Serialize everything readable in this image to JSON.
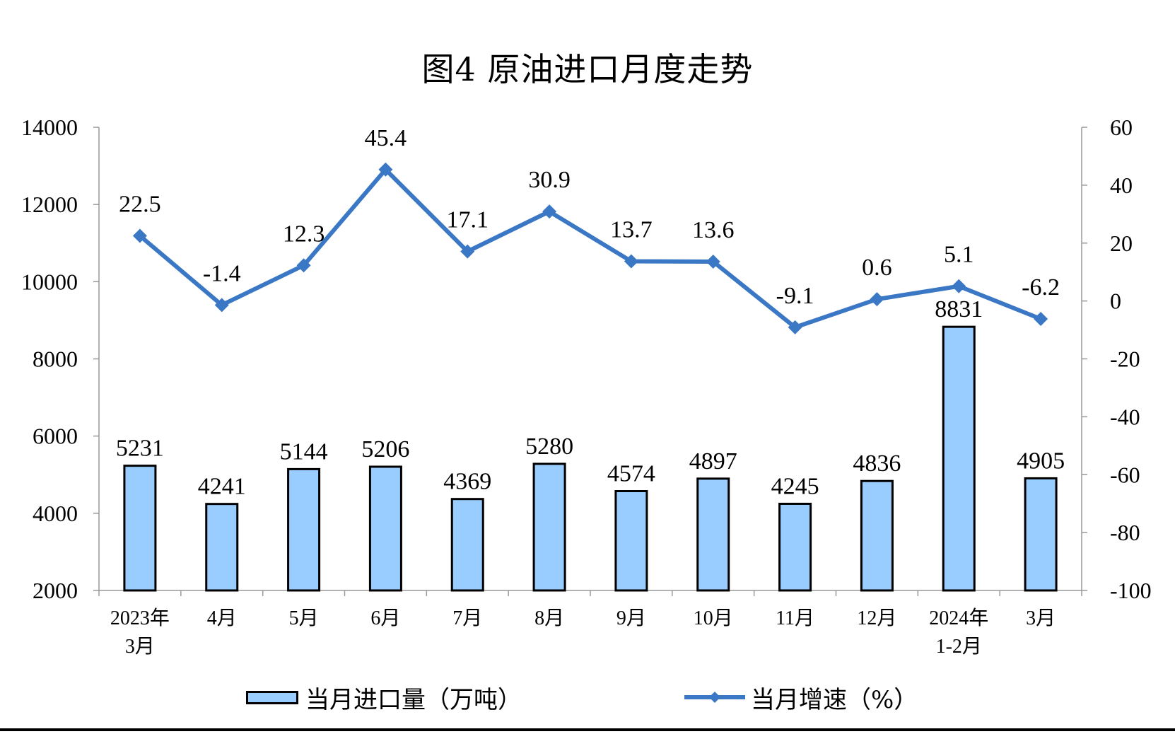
{
  "chart_data": {
    "type": "bar+line",
    "title": "图4 原油进口月度走势",
    "categories": [
      [
        "2023年",
        "3月"
      ],
      [
        "4月"
      ],
      [
        "5月"
      ],
      [
        "6月"
      ],
      [
        "7月"
      ],
      [
        "8月"
      ],
      [
        "9月"
      ],
      [
        "10月"
      ],
      [
        "11月"
      ],
      [
        "12月"
      ],
      [
        "2024年",
        "1-2月"
      ],
      [
        "3月"
      ]
    ],
    "series": [
      {
        "name": "当月进口量（万吨）",
        "type": "bar",
        "axis": "left",
        "values": [
          5231,
          4241,
          5144,
          5206,
          4369,
          5280,
          4574,
          4897,
          4245,
          4836,
          8831,
          4905
        ]
      },
      {
        "name": "当月增速（%）",
        "type": "line",
        "axis": "right",
        "values": [
          22.5,
          -1.4,
          12.3,
          45.4,
          17.1,
          30.9,
          13.7,
          13.6,
          -9.1,
          0.6,
          5.1,
          -6.2
        ],
        "labels": [
          "22.5",
          "-1.4",
          "12.3",
          "45.4",
          "17.1",
          "30.9",
          "13.7",
          "13.6",
          "-9.1",
          "0.6",
          "5.1",
          "-6.2"
        ]
      }
    ],
    "left_axis": {
      "min": 2000,
      "max": 14000,
      "ticks": [
        2000,
        4000,
        6000,
        8000,
        10000,
        12000,
        14000
      ]
    },
    "right_axis": {
      "min": -100,
      "max": 60,
      "ticks": [
        -100,
        -80,
        -60,
        -40,
        -20,
        0,
        20,
        40,
        60
      ]
    },
    "grid": false,
    "legend_position": "bottom",
    "colors": {
      "bar_fill": "#99ccff",
      "bar_stroke": "#000000",
      "line": "#3a77c4"
    }
  }
}
